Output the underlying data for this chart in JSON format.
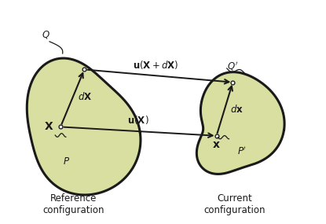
{
  "bg_color": "#ffffff",
  "body_fill": "#d8dfa0",
  "body_edge": "#1a1a1a",
  "arrow_color": "#1a1a1a",
  "text_color": "#1a1a1a",
  "ref_label": "Reference\nconfiguration",
  "cur_label": "Current\nconfiguration",
  "figsize": [
    4.15,
    2.85
  ],
  "dpi": 100,
  "xlim": [
    0,
    10
  ],
  "ylim": [
    0,
    7.5
  ]
}
